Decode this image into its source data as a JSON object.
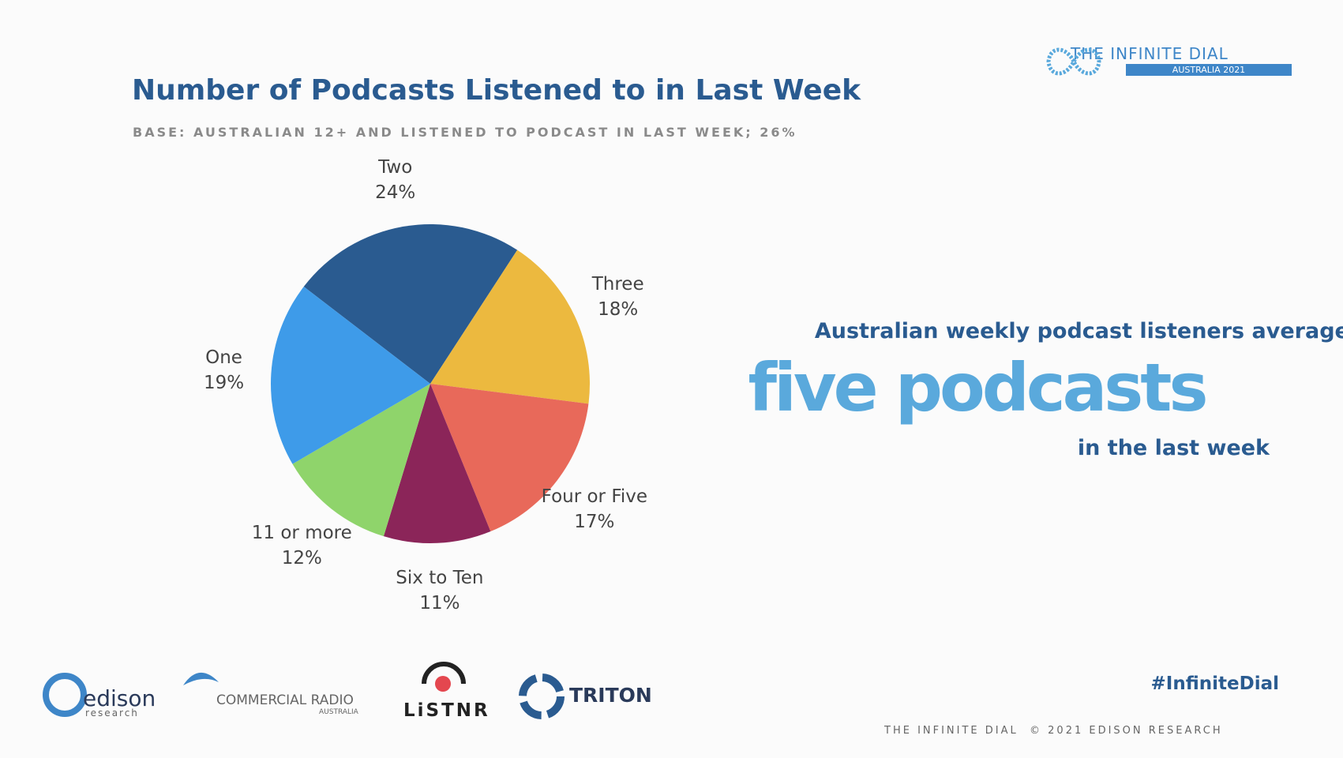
{
  "chart_data": {
    "type": "pie",
    "title": "Number of Podcasts Listened to in Last Week",
    "subtitle": "BASE: AUSTRALIAN 12+ AND LISTENED TO PODCAST IN LAST WEEK; 26%",
    "categories": [
      "Two",
      "Three",
      "Four or Five",
      "Six to Ten",
      "11 or more",
      "One"
    ],
    "values": [
      24,
      18,
      17,
      11,
      12,
      19
    ],
    "value_labels": [
      "24%",
      "18%",
      "17%",
      "11%",
      "12%",
      "19%"
    ],
    "colors": [
      "#2a5b90",
      "#ecb93f",
      "#e8695a",
      "#8b2559",
      "#8fd46b",
      "#3e9be9"
    ]
  },
  "callout": {
    "lead": "Australian weekly podcast listeners averaged",
    "highlight": "five podcasts",
    "tail": "in the last week"
  },
  "header_logo": {
    "name": "THE INFINITE DIAL",
    "edition": "AUSTRALIA 2021"
  },
  "sponsors": {
    "edison": "edison",
    "edison_sub": "research",
    "cra": "COMMERCIAL RADIO",
    "cra_sub": "AUSTRALIA",
    "listnr": "LiSTNR",
    "triton": "TRITON"
  },
  "footer": {
    "hashtag": "#InfiniteDial",
    "copyright": "THE INFINITE DIAL  © 2021 EDISON RESEARCH"
  }
}
